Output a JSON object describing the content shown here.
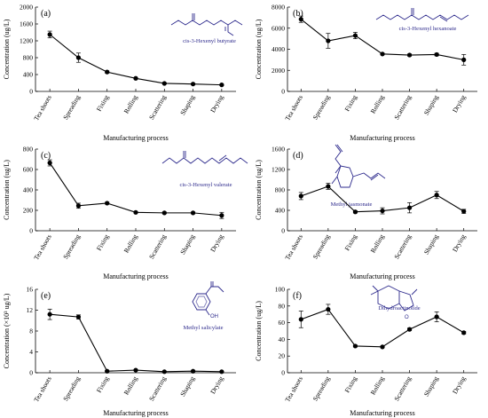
{
  "chart_data": [
    {
      "panel": "(a)",
      "compound": "cis-3-Hexenyl butyrate",
      "structure_icon": "hexenyl-butyrate-structure",
      "type": "line",
      "categories": [
        "Tea shoots",
        "Spreading",
        "Fixing",
        "Rolling",
        "Scattering",
        "Shaping",
        "Drying"
      ],
      "series": [
        {
          "values": [
            1350,
            800,
            460,
            310,
            190,
            175,
            155
          ],
          "errors": [
            80,
            110,
            25,
            20,
            15,
            15,
            15
          ]
        }
      ],
      "xlabel": "Manufacturing process",
      "ylabel": "Concentration (ug/L)",
      "ylim": [
        0,
        2000
      ],
      "yticks": [
        0,
        400,
        800,
        1200,
        1600,
        2000
      ],
      "ytick_labels": [
        "0",
        "400",
        "800",
        "1200",
        "1600",
        "2000"
      ]
    },
    {
      "panel": "(b)",
      "compound": "cis-3-Hexenyl hexanoate",
      "structure_icon": "hexenyl-hexanoate-structure",
      "type": "line",
      "categories": [
        "Tea shoots",
        "Spreading",
        "Fixing",
        "Rolling",
        "Scattering",
        "Shaping",
        "Drying"
      ],
      "series": [
        {
          "values": [
            6850,
            4800,
            5300,
            3550,
            3450,
            3500,
            3000
          ],
          "errors": [
            300,
            700,
            300,
            80,
            100,
            120,
            500
          ]
        }
      ],
      "xlabel": "Manufacturing process",
      "ylabel": "Concentration (ug/L)",
      "ylim": [
        0,
        8000
      ],
      "yticks": [
        0,
        2000,
        4000,
        6000,
        8000
      ],
      "ytick_labels": [
        "0",
        "2000",
        "4000",
        "6000",
        "8000"
      ]
    },
    {
      "panel": "(c)",
      "compound": "cis-3-Hexenyl valerate",
      "structure_icon": "hexenyl-valerate-structure",
      "type": "line",
      "categories": [
        "Tea shoots",
        "Spreading",
        "Fixing",
        "Rolling",
        "Scattering",
        "Shaping",
        "Drying"
      ],
      "series": [
        {
          "values": [
            665,
            245,
            270,
            180,
            175,
            175,
            150
          ],
          "errors": [
            30,
            25,
            10,
            8,
            8,
            8,
            30
          ]
        }
      ],
      "xlabel": "Manufacturing process",
      "ylabel": "Concentration (ug/L)",
      "ylim": [
        0,
        800
      ],
      "yticks": [
        0,
        200,
        400,
        600,
        800
      ],
      "ytick_labels": [
        "0",
        "200",
        "400",
        "600",
        "800"
      ]
    },
    {
      "panel": "(d)",
      "compound": "Methyl jasmonate",
      "structure_icon": "methyl-jasmonate-structure",
      "type": "line",
      "categories": [
        "Tea shoots",
        "Spreading",
        "Fixing",
        "Rolling",
        "Scattering",
        "Shaping",
        "Drying"
      ],
      "series": [
        {
          "values": [
            680,
            870,
            370,
            390,
            450,
            700,
            380
          ],
          "errors": [
            70,
            60,
            20,
            60,
            100,
            70,
            40
          ]
        }
      ],
      "xlabel": "Manufacturing process",
      "ylabel": "Concentration (ug/L)",
      "ylim": [
        0,
        1600
      ],
      "yticks": [
        0,
        400,
        800,
        1200,
        1600
      ],
      "ytick_labels": [
        "0",
        "400",
        "800",
        "1200",
        "1600"
      ]
    },
    {
      "panel": "(e)",
      "compound": "Methyl salicylate",
      "structure_icon": "methyl-salicylate-structure",
      "type": "line",
      "categories": [
        "Tea shoots",
        "Spreading",
        "Fixing",
        "Rolling",
        "Scattering",
        "Shaping",
        "Drying"
      ],
      "series": [
        {
          "values": [
            11.2,
            10.7,
            0.3,
            0.5,
            0.2,
            0.3,
            0.2
          ],
          "errors": [
            1.0,
            0.4,
            0.1,
            0.1,
            0.05,
            0.1,
            0.05
          ]
        }
      ],
      "xlabel": "Manufacturing process",
      "ylabel": "Concentration (×10³ ug/L)",
      "ylim": [
        0,
        16
      ],
      "yticks": [
        0,
        4,
        8,
        12,
        16
      ],
      "ytick_labels": [
        "0",
        "4",
        "8",
        "12",
        "16"
      ]
    },
    {
      "panel": "(f)",
      "compound": "Dihydroactinolide",
      "structure_icon": "dihydroactinolide-structure",
      "type": "line",
      "categories": [
        "Tea shoots",
        "Spreading",
        "Fixing",
        "Rolling",
        "Scattering",
        "Shaping",
        "Drying"
      ],
      "series": [
        {
          "values": [
            64,
            76,
            32,
            31,
            52,
            67,
            48
          ],
          "errors": [
            10,
            6,
            1,
            1,
            1.5,
            6,
            1.5
          ]
        }
      ],
      "xlabel": "Manufacturing process",
      "ylabel": "Concentration (ug/L)",
      "ylim": [
        0,
        100
      ],
      "yticks": [
        0,
        20,
        40,
        60,
        80,
        100
      ],
      "ytick_labels": [
        "0",
        "20",
        "40",
        "60",
        "80",
        "100"
      ]
    }
  ],
  "structure_labels": {
    "hydroxyl": "OH",
    "oxygen": "O"
  }
}
